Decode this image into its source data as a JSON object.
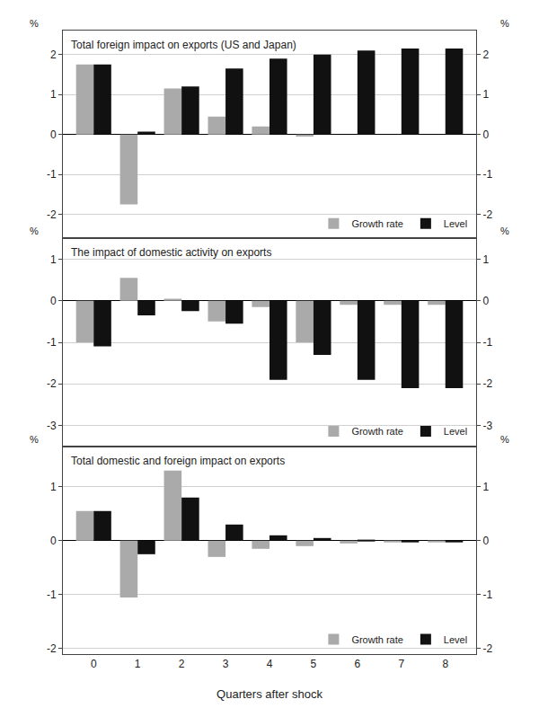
{
  "chart_data": [
    {
      "type": "bar",
      "title": "Total foreign impact on exports (US and Japan)",
      "x": [
        0,
        1,
        2,
        3,
        4,
        5,
        6,
        7,
        8
      ],
      "series": [
        {
          "name": "Growth rate",
          "color": "#aaaaaa",
          "values": [
            1.75,
            -1.75,
            1.15,
            0.45,
            0.2,
            -0.05,
            0.0,
            0.0,
            0.0
          ]
        },
        {
          "name": "Level",
          "color": "#111111",
          "values": [
            1.75,
            0.07,
            1.2,
            1.65,
            1.9,
            2.0,
            2.1,
            2.15,
            2.15
          ]
        }
      ],
      "xlim": [
        -0.7,
        8.7
      ],
      "xticks": [
        0,
        1,
        2,
        3,
        4,
        5,
        6,
        7,
        8
      ],
      "ylabel": "%",
      "ylim": [
        -2.6,
        2.6
      ],
      "yticks": [
        -2,
        -1,
        0,
        1,
        2
      ],
      "y2label": "%",
      "y2lim": [
        -2.6,
        2.6
      ],
      "y2ticks": [
        -2,
        -1,
        0,
        1,
        2
      ],
      "grid": true,
      "legend": "lower right",
      "tick_labels": "y"
    },
    {
      "type": "bar",
      "title": "The impact of domestic activity on exports",
      "x": [
        0,
        1,
        2,
        3,
        4,
        5,
        6,
        7,
        8
      ],
      "series": [
        {
          "name": "Growth rate",
          "color": "#aaaaaa",
          "values": [
            -1.0,
            0.55,
            0.05,
            -0.5,
            -0.15,
            -1.0,
            -0.1,
            -0.1,
            -0.1
          ]
        },
        {
          "name": "Level",
          "color": "#111111",
          "values": [
            -1.1,
            -0.35,
            -0.25,
            -0.55,
            -1.9,
            -1.3,
            -1.9,
            -2.1,
            -2.1
          ]
        }
      ],
      "xlim": [
        -0.7,
        8.7
      ],
      "xticks": [
        0,
        1,
        2,
        3,
        4,
        5,
        6,
        7,
        8
      ],
      "ylabel": "%",
      "ylim": [
        -3.5,
        1.5
      ],
      "yticks": [
        -3,
        -2,
        -1,
        0,
        1
      ],
      "y2label": "%",
      "y2lim": [
        -3.5,
        1.5
      ],
      "y2ticks": [
        -3,
        -2,
        -1,
        0,
        1
      ],
      "grid": true,
      "legend": "lower right",
      "tick_labels": "y"
    },
    {
      "type": "bar",
      "title": "Total domestic and foreign impact on exports",
      "xlabel": "Quarters after shock",
      "x": [
        0,
        1,
        2,
        3,
        4,
        5,
        6,
        7,
        8
      ],
      "series": [
        {
          "name": "Growth rate",
          "color": "#aaaaaa",
          "values": [
            0.55,
            -1.05,
            1.3,
            -0.3,
            -0.15,
            -0.1,
            -0.05,
            -0.02,
            -0.02
          ]
        },
        {
          "name": "Level",
          "color": "#111111",
          "values": [
            0.55,
            -0.25,
            0.8,
            0.3,
            0.1,
            0.05,
            0.02,
            -0.02,
            -0.02
          ]
        }
      ],
      "xlim": [
        -0.7,
        8.7
      ],
      "xticks": [
        0,
        1,
        2,
        3,
        4,
        5,
        6,
        7,
        8
      ],
      "ylabel": "%",
      "ylim": [
        -2.1,
        1.75
      ],
      "yticks": [
        -2,
        -1,
        0,
        1
      ],
      "y2label": "%",
      "y2lim": [
        -2.1,
        1.75
      ],
      "y2ticks": [
        -2,
        -1,
        0,
        1
      ],
      "grid": true,
      "legend": "lower right"
    }
  ]
}
